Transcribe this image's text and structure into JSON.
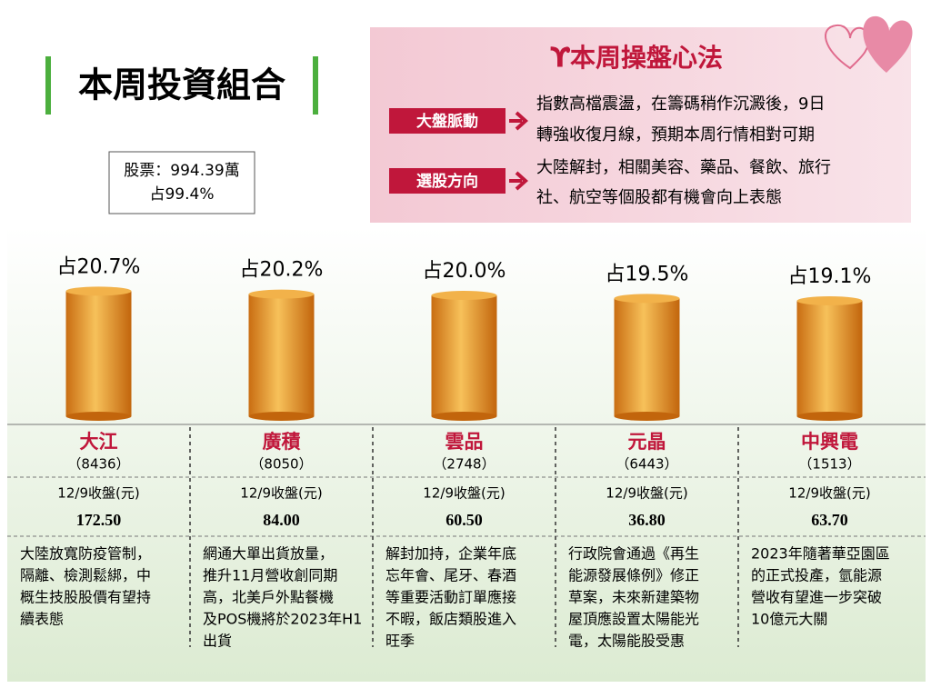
{
  "header": {
    "title": "本周投資組合",
    "summary": [
      "股票：994.39萬",
      "占99.4%"
    ]
  },
  "strategy": {
    "title": "本周操盤心法",
    "items": [
      {
        "label": "大盤脈動",
        "lines": [
          "指數高檔震盪，在籌碼稍作沉澱後，9日",
          "轉強收復月線，預期本周行情相對可期"
        ]
      },
      {
        "label": "選股方向",
        "lines": [
          "大陸解封，相關美容、藥品、餐飲、旅行",
          "社、航空等個股都有機會向上表態"
        ]
      }
    ]
  },
  "chart_data": {
    "type": "bar",
    "categories": [
      "大江",
      "廣積",
      "雲品",
      "元晶",
      "中興電"
    ],
    "values": [
      20.7,
      20.2,
      20.0,
      19.5,
      19.1
    ],
    "value_labels": [
      "占20.7%",
      "占20.2%",
      "占20.0%",
      "占19.5%",
      "占19.1%"
    ],
    "color": "#e39a2a"
  },
  "stocks": [
    {
      "code": "（8436）",
      "price_label": "12/9收盤(元)",
      "price": "172.50",
      "note": [
        "大陸放寬防疫管制，",
        "隔離、檢測鬆綁，中",
        "概生技股股價有望持",
        "續表態"
      ]
    },
    {
      "code": "（8050）",
      "price_label": "12/9收盤(元)",
      "price": "84.00",
      "note": [
        "網通大單出貨放量，",
        "推升11月營收創同期",
        "高，北美戶外點餐機",
        "及POS機將於2023年H1",
        "出貨"
      ]
    },
    {
      "code": "（2748）",
      "price_label": "12/9收盤(元)",
      "price": "60.50",
      "note": [
        "解封加持，企業年底",
        "忘年會、尾牙、春酒",
        "等重要活動訂單應接",
        "不暇，飯店類股進入",
        "旺季"
      ]
    },
    {
      "code": "（6443）",
      "price_label": "12/9收盤(元)",
      "price": "36.80",
      "note": [
        "行政院會通過《再生",
        "能源發展條例》修正",
        "草案，未來新建築物",
        "屋頂應設置太陽能光",
        "電，太陽能股受惠"
      ]
    },
    {
      "code": "（1513）",
      "price_label": "12/9收盤(元)",
      "price": "63.70",
      "note": [
        "2023年隨著華亞園區",
        "的正式投產，氫能源",
        "營收有望進一步突破",
        "10億元大關"
      ]
    }
  ]
}
